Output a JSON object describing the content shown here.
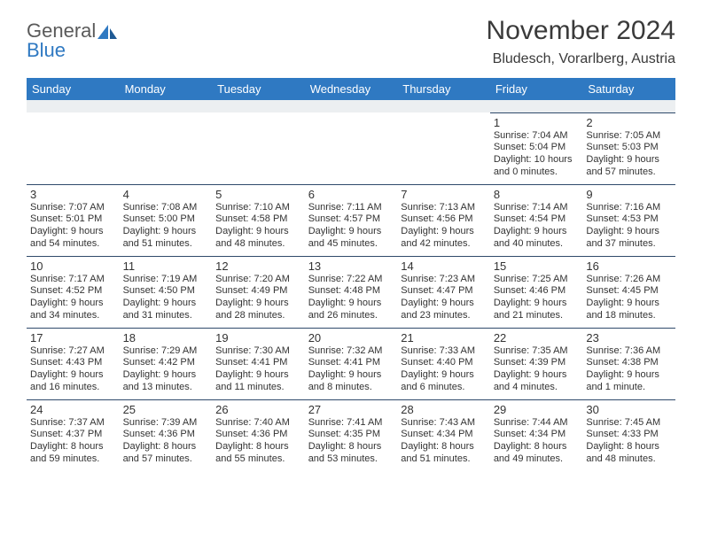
{
  "brand": {
    "line1": "General",
    "line2": "Blue"
  },
  "title": "November 2024",
  "location": "Bludesch, Vorarlberg, Austria",
  "colors": {
    "header_bg": "#2f79c2",
    "header_text": "#ffffff",
    "spacer_bg": "#eceff1",
    "rule": "#2f4a6b",
    "text": "#333333",
    "brand_gray": "#5a5a5a",
    "brand_blue": "#2f79c2"
  },
  "typography": {
    "title_fontsize": 30,
    "location_fontsize": 16,
    "weekday_fontsize": 13,
    "daynum_fontsize": 13,
    "dayinfo_fontsize": 11
  },
  "weekdays": [
    "Sunday",
    "Monday",
    "Tuesday",
    "Wednesday",
    "Thursday",
    "Friday",
    "Saturday"
  ],
  "calendar": {
    "type": "table",
    "columns": 7,
    "weeks": [
      [
        null,
        null,
        null,
        null,
        null,
        {
          "n": "1",
          "sunrise": "Sunrise: 7:04 AM",
          "sunset": "Sunset: 5:04 PM",
          "daylight": "Daylight: 10 hours and 0 minutes."
        },
        {
          "n": "2",
          "sunrise": "Sunrise: 7:05 AM",
          "sunset": "Sunset: 5:03 PM",
          "daylight": "Daylight: 9 hours and 57 minutes."
        }
      ],
      [
        {
          "n": "3",
          "sunrise": "Sunrise: 7:07 AM",
          "sunset": "Sunset: 5:01 PM",
          "daylight": "Daylight: 9 hours and 54 minutes."
        },
        {
          "n": "4",
          "sunrise": "Sunrise: 7:08 AM",
          "sunset": "Sunset: 5:00 PM",
          "daylight": "Daylight: 9 hours and 51 minutes."
        },
        {
          "n": "5",
          "sunrise": "Sunrise: 7:10 AM",
          "sunset": "Sunset: 4:58 PM",
          "daylight": "Daylight: 9 hours and 48 minutes."
        },
        {
          "n": "6",
          "sunrise": "Sunrise: 7:11 AM",
          "sunset": "Sunset: 4:57 PM",
          "daylight": "Daylight: 9 hours and 45 minutes."
        },
        {
          "n": "7",
          "sunrise": "Sunrise: 7:13 AM",
          "sunset": "Sunset: 4:56 PM",
          "daylight": "Daylight: 9 hours and 42 minutes."
        },
        {
          "n": "8",
          "sunrise": "Sunrise: 7:14 AM",
          "sunset": "Sunset: 4:54 PM",
          "daylight": "Daylight: 9 hours and 40 minutes."
        },
        {
          "n": "9",
          "sunrise": "Sunrise: 7:16 AM",
          "sunset": "Sunset: 4:53 PM",
          "daylight": "Daylight: 9 hours and 37 minutes."
        }
      ],
      [
        {
          "n": "10",
          "sunrise": "Sunrise: 7:17 AM",
          "sunset": "Sunset: 4:52 PM",
          "daylight": "Daylight: 9 hours and 34 minutes."
        },
        {
          "n": "11",
          "sunrise": "Sunrise: 7:19 AM",
          "sunset": "Sunset: 4:50 PM",
          "daylight": "Daylight: 9 hours and 31 minutes."
        },
        {
          "n": "12",
          "sunrise": "Sunrise: 7:20 AM",
          "sunset": "Sunset: 4:49 PM",
          "daylight": "Daylight: 9 hours and 28 minutes."
        },
        {
          "n": "13",
          "sunrise": "Sunrise: 7:22 AM",
          "sunset": "Sunset: 4:48 PM",
          "daylight": "Daylight: 9 hours and 26 minutes."
        },
        {
          "n": "14",
          "sunrise": "Sunrise: 7:23 AM",
          "sunset": "Sunset: 4:47 PM",
          "daylight": "Daylight: 9 hours and 23 minutes."
        },
        {
          "n": "15",
          "sunrise": "Sunrise: 7:25 AM",
          "sunset": "Sunset: 4:46 PM",
          "daylight": "Daylight: 9 hours and 21 minutes."
        },
        {
          "n": "16",
          "sunrise": "Sunrise: 7:26 AM",
          "sunset": "Sunset: 4:45 PM",
          "daylight": "Daylight: 9 hours and 18 minutes."
        }
      ],
      [
        {
          "n": "17",
          "sunrise": "Sunrise: 7:27 AM",
          "sunset": "Sunset: 4:43 PM",
          "daylight": "Daylight: 9 hours and 16 minutes."
        },
        {
          "n": "18",
          "sunrise": "Sunrise: 7:29 AM",
          "sunset": "Sunset: 4:42 PM",
          "daylight": "Daylight: 9 hours and 13 minutes."
        },
        {
          "n": "19",
          "sunrise": "Sunrise: 7:30 AM",
          "sunset": "Sunset: 4:41 PM",
          "daylight": "Daylight: 9 hours and 11 minutes."
        },
        {
          "n": "20",
          "sunrise": "Sunrise: 7:32 AM",
          "sunset": "Sunset: 4:41 PM",
          "daylight": "Daylight: 9 hours and 8 minutes."
        },
        {
          "n": "21",
          "sunrise": "Sunrise: 7:33 AM",
          "sunset": "Sunset: 4:40 PM",
          "daylight": "Daylight: 9 hours and 6 minutes."
        },
        {
          "n": "22",
          "sunrise": "Sunrise: 7:35 AM",
          "sunset": "Sunset: 4:39 PM",
          "daylight": "Daylight: 9 hours and 4 minutes."
        },
        {
          "n": "23",
          "sunrise": "Sunrise: 7:36 AM",
          "sunset": "Sunset: 4:38 PM",
          "daylight": "Daylight: 9 hours and 1 minute."
        }
      ],
      [
        {
          "n": "24",
          "sunrise": "Sunrise: 7:37 AM",
          "sunset": "Sunset: 4:37 PM",
          "daylight": "Daylight: 8 hours and 59 minutes."
        },
        {
          "n": "25",
          "sunrise": "Sunrise: 7:39 AM",
          "sunset": "Sunset: 4:36 PM",
          "daylight": "Daylight: 8 hours and 57 minutes."
        },
        {
          "n": "26",
          "sunrise": "Sunrise: 7:40 AM",
          "sunset": "Sunset: 4:36 PM",
          "daylight": "Daylight: 8 hours and 55 minutes."
        },
        {
          "n": "27",
          "sunrise": "Sunrise: 7:41 AM",
          "sunset": "Sunset: 4:35 PM",
          "daylight": "Daylight: 8 hours and 53 minutes."
        },
        {
          "n": "28",
          "sunrise": "Sunrise: 7:43 AM",
          "sunset": "Sunset: 4:34 PM",
          "daylight": "Daylight: 8 hours and 51 minutes."
        },
        {
          "n": "29",
          "sunrise": "Sunrise: 7:44 AM",
          "sunset": "Sunset: 4:34 PM",
          "daylight": "Daylight: 8 hours and 49 minutes."
        },
        {
          "n": "30",
          "sunrise": "Sunrise: 7:45 AM",
          "sunset": "Sunset: 4:33 PM",
          "daylight": "Daylight: 8 hours and 48 minutes."
        }
      ]
    ]
  }
}
